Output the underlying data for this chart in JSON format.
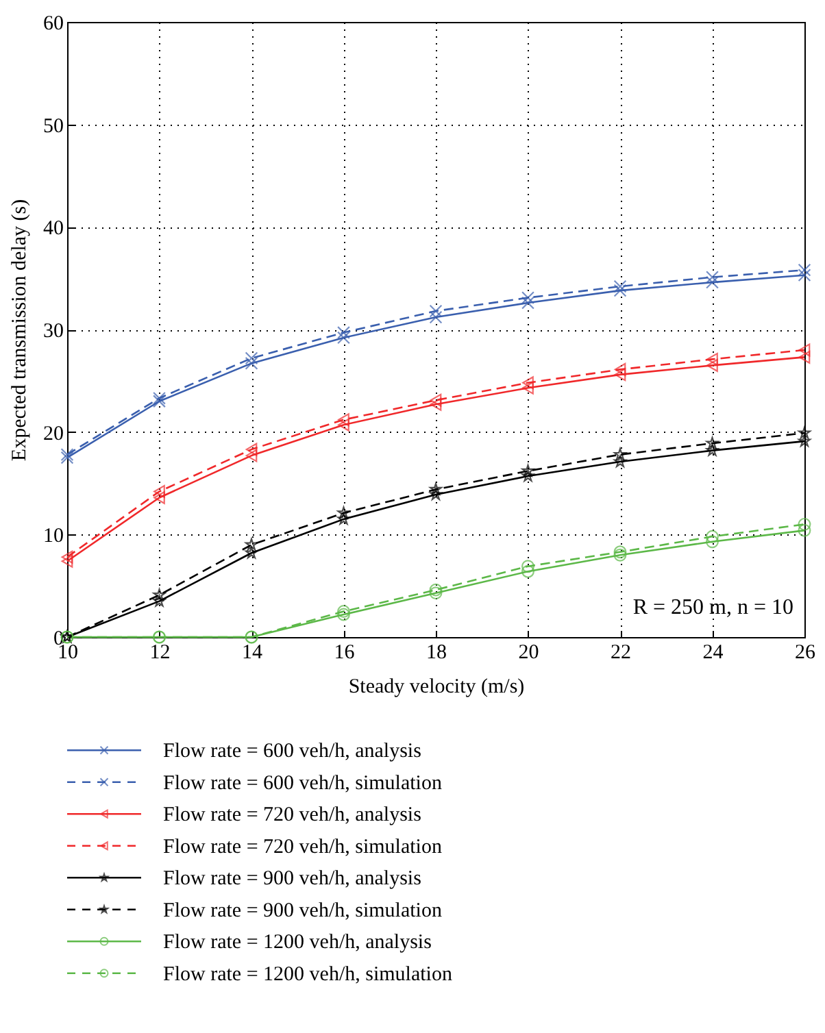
{
  "chart_data": {
    "type": "line",
    "xlabel": "Steady velocity (m/s)",
    "ylabel": "Expected transmission delay (s)",
    "x": [
      10,
      12,
      14,
      16,
      18,
      20,
      22,
      24,
      26
    ],
    "xlim": [
      10,
      26
    ],
    "xticks": [
      10,
      12,
      14,
      16,
      18,
      20,
      22,
      24,
      26
    ],
    "ylim": [
      0,
      60
    ],
    "yticks": [
      0,
      10,
      20,
      30,
      40,
      50,
      60
    ],
    "grid": true,
    "legend": "bottom",
    "annotations": [
      "R = 250 m, n = 10"
    ],
    "series": [
      {
        "name": "Flow rate = 600 veh/h, analysis",
        "color": "#3a5fae",
        "marker": "cross",
        "line_style": "solid",
        "values": [
          17.5,
          23.0,
          26.7,
          29.2,
          31.2,
          32.6,
          33.8,
          34.6,
          35.3
        ]
      },
      {
        "name": "Flow rate = 600 veh/h, simulation",
        "color": "#3a5fae",
        "marker": "cross",
        "line_style": "dashed",
        "values": [
          17.8,
          23.3,
          27.2,
          29.7,
          31.8,
          33.1,
          34.2,
          35.1,
          35.8
        ]
      },
      {
        "name": "Flow rate = 720 veh/h, analysis",
        "color": "#f0282a",
        "marker": "triangle",
        "line_style": "solid",
        "values": [
          7.4,
          13.6,
          17.7,
          20.7,
          22.7,
          24.3,
          25.6,
          26.5,
          27.3
        ]
      },
      {
        "name": "Flow rate = 720 veh/h, simulation",
        "color": "#f0282a",
        "marker": "triangle",
        "line_style": "dashed",
        "values": [
          7.8,
          14.2,
          18.3,
          21.2,
          23.1,
          24.8,
          26.1,
          27.1,
          28.0
        ]
      },
      {
        "name": "Flow rate = 900 veh/h, analysis",
        "color": "#000000",
        "marker": "star",
        "line_style": "solid",
        "values": [
          0,
          3.5,
          8.2,
          11.5,
          13.9,
          15.7,
          17.1,
          18.2,
          19.1
        ]
      },
      {
        "name": "Flow rate = 900 veh/h, simulation",
        "color": "#000000",
        "marker": "star",
        "line_style": "dashed",
        "values": [
          0,
          4.1,
          9.0,
          12.1,
          14.4,
          16.2,
          17.8,
          18.9,
          19.9
        ]
      },
      {
        "name": "Flow rate = 1200 veh/h, analysis",
        "color": "#5cb848",
        "marker": "circle",
        "line_style": "solid",
        "values": [
          0,
          0,
          0,
          2.2,
          4.3,
          6.4,
          8.0,
          9.3,
          10.4
        ]
      },
      {
        "name": "Flow rate = 1200 veh/h, simulation",
        "color": "#5cb848",
        "marker": "circle",
        "line_style": "dashed",
        "values": [
          0,
          0,
          0,
          2.5,
          4.6,
          6.9,
          8.3,
          9.8,
          11.0
        ]
      }
    ]
  }
}
